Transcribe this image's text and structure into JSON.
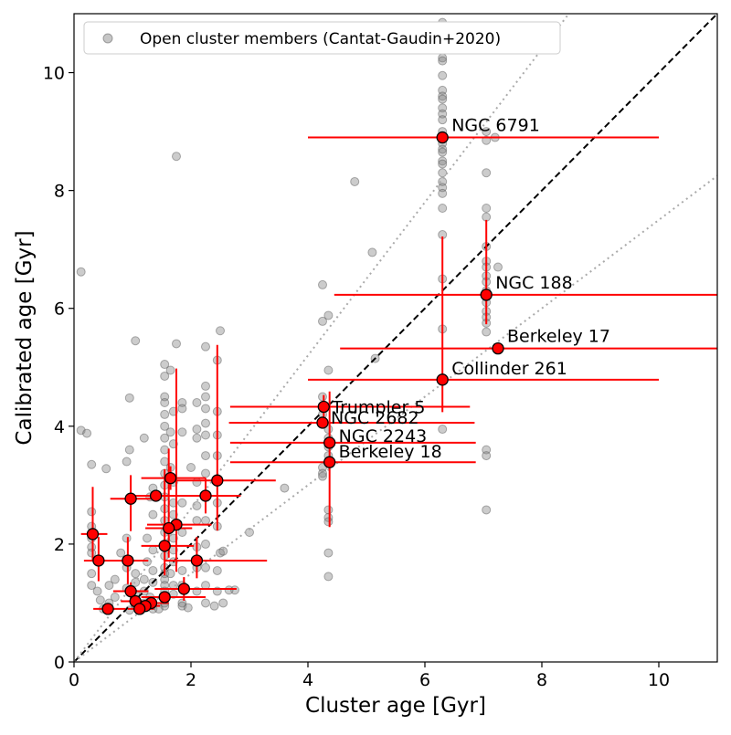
{
  "chart_data": {
    "type": "scatter",
    "title": "",
    "xlabel": "Cluster age [Gyr]",
    "ylabel": "Calibrated age [Gyr]",
    "xlim": [
      0,
      11
    ],
    "ylim": [
      0,
      11
    ],
    "x_ticks": [
      0,
      2,
      4,
      6,
      8,
      10
    ],
    "y_ticks": [
      0,
      2,
      4,
      6,
      8,
      10
    ],
    "x_tick_labels": [
      "0",
      "2",
      "4",
      "6",
      "8",
      "10"
    ],
    "y_tick_labels": [
      "0",
      "2",
      "4",
      "6",
      "8",
      "10"
    ],
    "grid": false,
    "legend_position": "top-left",
    "colors": {
      "members": "#808080",
      "cluster_marker": "#ff0000",
      "cluster_edge": "#000000",
      "error_bar": "#ff0000",
      "one_to_one": "#000000",
      "envelope": "#aaaaaa"
    },
    "reference_lines": [
      {
        "style": "dashed",
        "slope": 1.0
      },
      {
        "style": "dotted",
        "slope": 1.3
      },
      {
        "style": "dotted",
        "slope": 0.75
      }
    ],
    "member_series": {
      "name": "Open cluster members (Cantat-Gaudin+2020)",
      "points": [
        [
          6.3,
          10.85
        ],
        [
          6.3,
          10.75
        ],
        [
          6.3,
          10.25
        ],
        [
          6.3,
          10.2
        ],
        [
          6.3,
          9.95
        ],
        [
          6.3,
          9.7
        ],
        [
          6.3,
          9.6
        ],
        [
          6.3,
          9.55
        ],
        [
          6.3,
          9.4
        ],
        [
          6.3,
          9.3
        ],
        [
          6.3,
          9.2
        ],
        [
          6.3,
          9.0
        ],
        [
          6.3,
          8.8
        ],
        [
          6.3,
          8.7
        ],
        [
          6.3,
          8.65
        ],
        [
          6.3,
          8.5
        ],
        [
          6.3,
          8.45
        ],
        [
          6.3,
          8.3
        ],
        [
          6.3,
          8.15
        ],
        [
          6.3,
          8.05
        ],
        [
          6.3,
          7.95
        ],
        [
          6.3,
          7.7
        ],
        [
          6.3,
          7.25
        ],
        [
          6.3,
          6.5
        ],
        [
          6.3,
          5.65
        ],
        [
          6.3,
          3.95
        ],
        [
          7.05,
          9.0
        ],
        [
          7.05,
          8.85
        ],
        [
          7.05,
          8.3
        ],
        [
          7.05,
          7.7
        ],
        [
          7.05,
          7.55
        ],
        [
          7.05,
          7.05
        ],
        [
          7.05,
          6.8
        ],
        [
          7.05,
          6.7
        ],
        [
          7.05,
          6.55
        ],
        [
          7.05,
          6.45
        ],
        [
          7.05,
          6.3
        ],
        [
          7.05,
          6.2
        ],
        [
          7.05,
          6.1
        ],
        [
          7.05,
          5.95
        ],
        [
          7.05,
          5.85
        ],
        [
          7.05,
          5.75
        ],
        [
          7.05,
          5.6
        ],
        [
          7.05,
          3.6
        ],
        [
          7.05,
          3.5
        ],
        [
          7.05,
          2.58
        ],
        [
          7.2,
          8.9
        ],
        [
          7.25,
          6.7
        ],
        [
          4.25,
          6.4
        ],
        [
          4.25,
          5.78
        ],
        [
          4.35,
          5.88
        ],
        [
          4.35,
          4.95
        ],
        [
          4.25,
          4.5
        ],
        [
          4.25,
          4.35
        ],
        [
          4.25,
          4.2
        ],
        [
          4.25,
          4.05
        ],
        [
          4.35,
          3.95
        ],
        [
          4.35,
          3.8
        ],
        [
          4.35,
          3.65
        ],
        [
          4.35,
          3.5
        ],
        [
          4.35,
          3.4
        ],
        [
          4.25,
          3.3
        ],
        [
          4.25,
          3.2
        ],
        [
          4.25,
          3.15
        ],
        [
          4.35,
          2.58
        ],
        [
          4.35,
          2.45
        ],
        [
          4.35,
          2.38
        ],
        [
          4.35,
          1.85
        ],
        [
          4.35,
          1.45
        ],
        [
          4.8,
          8.15
        ],
        [
          5.1,
          6.95
        ],
        [
          5.15,
          5.15
        ],
        [
          3.6,
          2.95
        ],
        [
          3.0,
          2.2
        ],
        [
          2.75,
          1.22
        ],
        [
          0.12,
          6.62
        ],
        [
          0.12,
          3.93
        ],
        [
          0.22,
          3.88
        ],
        [
          1.75,
          8.58
        ],
        [
          1.05,
          5.45
        ],
        [
          1.75,
          5.4
        ],
        [
          2.5,
          5.62
        ],
        [
          2.45,
          5.12
        ],
        [
          2.25,
          5.35
        ],
        [
          2.25,
          4.68
        ],
        [
          2.25,
          4.5
        ],
        [
          2.25,
          4.3
        ],
        [
          2.25,
          4.05
        ],
        [
          2.25,
          3.85
        ],
        [
          2.25,
          3.5
        ],
        [
          2.25,
          3.2
        ],
        [
          2.25,
          2.85
        ],
        [
          2.25,
          2.4
        ],
        [
          2.25,
          2.0
        ],
        [
          2.25,
          1.6
        ],
        [
          2.25,
          1.3
        ],
        [
          2.25,
          1.0
        ],
        [
          0.95,
          4.48
        ],
        [
          0.95,
          3.6
        ],
        [
          0.9,
          3.4
        ],
        [
          0.55,
          3.28
        ],
        [
          0.3,
          3.35
        ],
        [
          0.3,
          2.55
        ],
        [
          0.3,
          2.3
        ],
        [
          0.3,
          2.1
        ],
        [
          0.3,
          1.95
        ],
        [
          0.3,
          1.85
        ],
        [
          0.3,
          1.5
        ],
        [
          0.3,
          1.3
        ],
        [
          1.55,
          5.05
        ],
        [
          1.55,
          4.85
        ],
        [
          1.55,
          4.5
        ],
        [
          1.55,
          4.4
        ],
        [
          1.55,
          4.2
        ],
        [
          1.55,
          4.0
        ],
        [
          1.55,
          3.8
        ],
        [
          1.55,
          3.6
        ],
        [
          1.55,
          3.4
        ],
        [
          1.55,
          3.2
        ],
        [
          1.55,
          3.0
        ],
        [
          1.55,
          2.8
        ],
        [
          1.55,
          2.6
        ],
        [
          1.55,
          2.4
        ],
        [
          1.55,
          2.2
        ],
        [
          1.55,
          2.0
        ],
        [
          1.55,
          1.8
        ],
        [
          1.55,
          1.6
        ],
        [
          1.55,
          1.5
        ],
        [
          1.55,
          1.4
        ],
        [
          1.55,
          1.3
        ],
        [
          1.55,
          1.2
        ],
        [
          1.55,
          1.1
        ],
        [
          1.55,
          1.0
        ],
        [
          1.55,
          0.95
        ],
        [
          1.65,
          4.95
        ],
        [
          1.7,
          4.25
        ],
        [
          1.65,
          3.9
        ],
        [
          1.7,
          3.7
        ],
        [
          1.65,
          3.3
        ],
        [
          1.7,
          3.05
        ],
        [
          1.7,
          2.7
        ],
        [
          1.7,
          2.5
        ],
        [
          1.7,
          2.1
        ],
        [
          1.7,
          1.9
        ],
        [
          1.7,
          1.7
        ],
        [
          1.65,
          1.5
        ],
        [
          1.7,
          1.3
        ],
        [
          1.7,
          1.15
        ],
        [
          1.85,
          4.4
        ],
        [
          1.85,
          4.3
        ],
        [
          1.85,
          3.9
        ],
        [
          1.85,
          2.7
        ],
        [
          1.85,
          2.2
        ],
        [
          1.85,
          1.55
        ],
        [
          1.85,
          1.3
        ],
        [
          1.85,
          1.0
        ],
        [
          1.85,
          0.95
        ],
        [
          2.1,
          4.4
        ],
        [
          2.1,
          3.95
        ],
        [
          2.1,
          3.8
        ],
        [
          2.0,
          3.3
        ],
        [
          2.1,
          3.05
        ],
        [
          2.1,
          2.65
        ],
        [
          2.1,
          2.4
        ],
        [
          2.1,
          1.95
        ],
        [
          2.1,
          1.6
        ],
        [
          2.1,
          1.2
        ],
        [
          2.45,
          4.25
        ],
        [
          2.45,
          3.85
        ],
        [
          2.45,
          3.5
        ],
        [
          2.45,
          2.7
        ],
        [
          2.45,
          2.3
        ],
        [
          2.45,
          1.55
        ],
        [
          2.45,
          1.2
        ],
        [
          2.5,
          1.85
        ],
        [
          2.55,
          1.88
        ],
        [
          1.2,
          3.8
        ],
        [
          1.35,
          2.95
        ],
        [
          1.3,
          2.8
        ],
        [
          1.35,
          2.5
        ],
        [
          1.25,
          2.1
        ],
        [
          1.35,
          1.9
        ],
        [
          1.25,
          1.7
        ],
        [
          1.35,
          1.55
        ],
        [
          1.2,
          1.4
        ],
        [
          1.35,
          1.35
        ],
        [
          1.2,
          1.2
        ],
        [
          1.3,
          1.1
        ],
        [
          1.2,
          1.0
        ],
        [
          1.35,
          0.9
        ],
        [
          0.9,
          2.1
        ],
        [
          0.8,
          1.85
        ],
        [
          0.9,
          1.6
        ],
        [
          0.7,
          1.4
        ],
        [
          0.9,
          1.25
        ],
        [
          0.7,
          1.1
        ],
        [
          0.6,
          1.0
        ],
        [
          0.55,
          0.92
        ],
        [
          0.5,
          0.9
        ],
        [
          0.45,
          1.05
        ],
        [
          0.4,
          1.2
        ],
        [
          0.6,
          1.3
        ],
        [
          1.05,
          1.5
        ],
        [
          1.05,
          1.35
        ],
        [
          1.05,
          1.15
        ],
        [
          1.05,
          0.95
        ],
        [
          0.95,
          0.88
        ],
        [
          2.65,
          1.22
        ],
        [
          2.55,
          1.0
        ],
        [
          2.4,
          0.95
        ],
        [
          1.95,
          0.92
        ],
        [
          1.45,
          0.9
        ],
        [
          1.15,
          0.88
        ]
      ]
    },
    "clusters": [
      {
        "name": "NGC 6791",
        "x": 6.3,
        "y": 8.9,
        "xerr": [
          2.3,
          3.7
        ],
        "yerr": [
          0,
          0
        ],
        "label": "NGC 6791"
      },
      {
        "name": "NGC 188",
        "x": 7.05,
        "y": 6.23,
        "xerr": [
          2.6,
          3.95
        ],
        "yerr": [
          0.5,
          1.27
        ],
        "label": "NGC 188"
      },
      {
        "name": "Berkeley 17",
        "x": 7.25,
        "y": 5.32,
        "xerr": [
          2.7,
          3.75
        ],
        "yerr": [
          0,
          0
        ],
        "label": "Berkeley 17"
      },
      {
        "name": "Collinder 261",
        "x": 6.3,
        "y": 4.79,
        "xerr": [
          2.3,
          3.7
        ],
        "yerr": [
          0.55,
          2.43
        ],
        "label": "Collinder 261"
      },
      {
        "name": "Trumpler 5",
        "x": 4.27,
        "y": 4.33,
        "xerr": [
          1.6,
          2.5
        ],
        "yerr": [
          0.2,
          0.2
        ],
        "label": "Trumpler 5"
      },
      {
        "name": "NGC 2682",
        "x": 4.25,
        "y": 4.06,
        "xerr": [
          1.6,
          2.6
        ],
        "yerr": [
          0,
          0
        ],
        "label": "NGC 2682"
      },
      {
        "name": "NGC 2243",
        "x": 4.37,
        "y": 3.72,
        "xerr": [
          1.7,
          2.5
        ],
        "yerr": [
          0,
          0
        ],
        "label": "NGC 2243"
      },
      {
        "name": "Berkeley 18",
        "x": 4.37,
        "y": 3.39,
        "xerr": [
          1.7,
          2.5
        ],
        "yerr": [
          1.1,
          1.2
        ],
        "label": "Berkeley 18"
      },
      {
        "name": "",
        "x": 2.45,
        "y": 3.08,
        "xerr": [
          0.7,
          1.0
        ],
        "yerr": [
          0.85,
          2.3
        ],
        "label": ""
      },
      {
        "name": "",
        "x": 1.65,
        "y": 3.12,
        "xerr": [
          0.5,
          0.6
        ],
        "yerr": [
          0.2,
          0.2
        ],
        "label": ""
      },
      {
        "name": "",
        "x": 2.25,
        "y": 2.82,
        "xerr": [
          0.6,
          0.6
        ],
        "yerr": [
          0.3,
          0.3
        ],
        "label": ""
      },
      {
        "name": "",
        "x": 1.4,
        "y": 2.82,
        "xerr": [
          0.5,
          0.5
        ],
        "yerr": [
          0.0,
          0.0
        ],
        "label": ""
      },
      {
        "name": "",
        "x": 0.97,
        "y": 2.77,
        "xerr": [
          0.35,
          0.4
        ],
        "yerr": [
          0.55,
          0.4
        ],
        "label": ""
      },
      {
        "name": "",
        "x": 1.75,
        "y": 2.33,
        "xerr": [
          0.5,
          0.6
        ],
        "yerr": [
          0.8,
          2.65
        ],
        "label": ""
      },
      {
        "name": "",
        "x": 1.62,
        "y": 2.27,
        "xerr": [
          0.4,
          0.4
        ],
        "yerr": [
          0.5,
          1.35
        ],
        "label": ""
      },
      {
        "name": "",
        "x": 0.32,
        "y": 2.17,
        "xerr": [
          0.2,
          0.25
        ],
        "yerr": [
          0.45,
          0.8
        ],
        "label": ""
      },
      {
        "name": "",
        "x": 1.55,
        "y": 1.97,
        "xerr": [
          0.4,
          0.5
        ],
        "yerr": [
          0.5,
          1.3
        ],
        "label": ""
      },
      {
        "name": "",
        "x": 0.42,
        "y": 1.72,
        "xerr": [
          0.25,
          0.3
        ],
        "yerr": [
          0.35,
          0.4
        ],
        "label": ""
      },
      {
        "name": "",
        "x": 0.92,
        "y": 1.72,
        "xerr": [
          0.3,
          0.35
        ],
        "yerr": [
          0.4,
          0.4
        ],
        "label": ""
      },
      {
        "name": "",
        "x": 2.1,
        "y": 1.72,
        "xerr": [
          0.55,
          1.2
        ],
        "yerr": [
          0.3,
          0.4
        ],
        "label": ""
      },
      {
        "name": "",
        "x": 1.88,
        "y": 1.24,
        "xerr": [
          0.5,
          0.9
        ],
        "yerr": [
          0.2,
          0.2
        ],
        "label": ""
      },
      {
        "name": "",
        "x": 0.97,
        "y": 1.2,
        "xerr": [
          0.3,
          0.3
        ],
        "yerr": [
          0.15,
          0.15
        ],
        "label": ""
      },
      {
        "name": "",
        "x": 1.55,
        "y": 1.1,
        "xerr": [
          0.4,
          0.7
        ],
        "yerr": [
          0.1,
          0.1
        ],
        "label": ""
      },
      {
        "name": "",
        "x": 1.05,
        "y": 1.03,
        "xerr": [
          0.25,
          0.3
        ],
        "yerr": [
          0.1,
          0.1
        ],
        "label": ""
      },
      {
        "name": "",
        "x": 1.32,
        "y": 1.0,
        "xerr": [
          0.25,
          0.3
        ],
        "yerr": [
          0.08,
          0.08
        ],
        "label": ""
      },
      {
        "name": "",
        "x": 1.22,
        "y": 0.95,
        "xerr": [
          0.2,
          0.25
        ],
        "yerr": [
          0.08,
          0.08
        ],
        "label": ""
      },
      {
        "name": "",
        "x": 1.12,
        "y": 0.9,
        "xerr": [
          0.2,
          0.25
        ],
        "yerr": [
          0.05,
          0.05
        ],
        "label": ""
      },
      {
        "name": "",
        "x": 0.58,
        "y": 0.9,
        "xerr": [
          0.25,
          0.3
        ],
        "yerr": [
          0.05,
          0.05
        ],
        "label": ""
      }
    ]
  }
}
